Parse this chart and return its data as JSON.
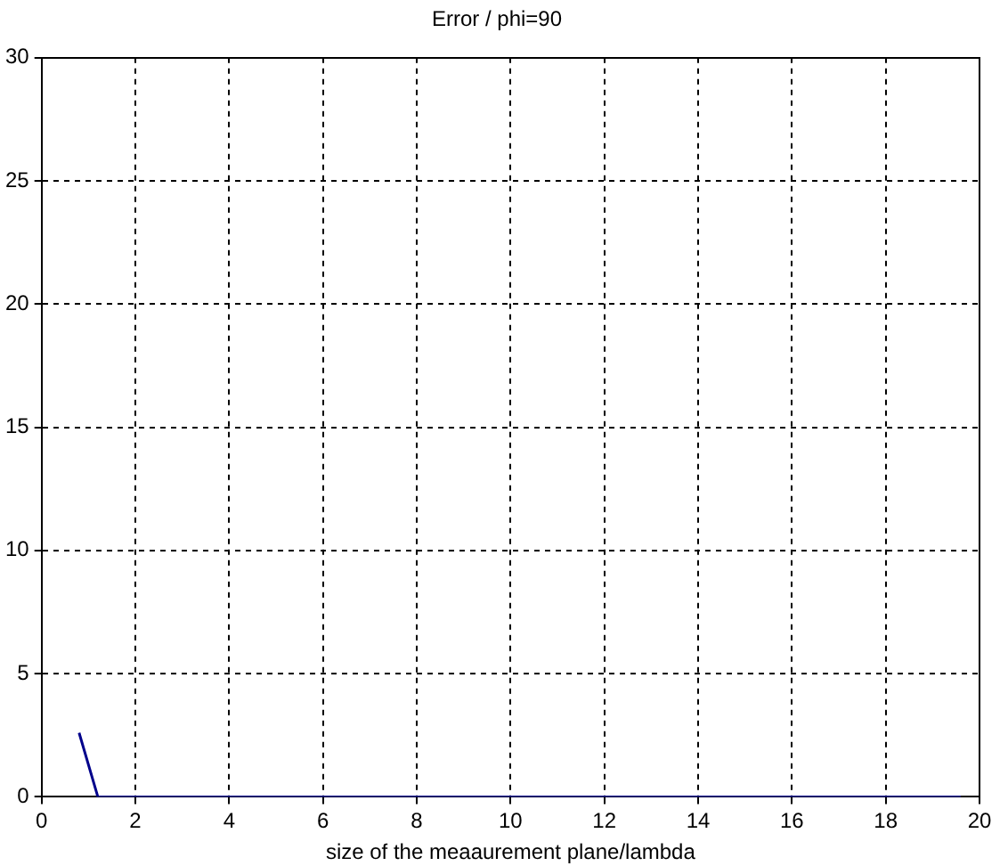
{
  "chart_data": {
    "type": "line",
    "title": "Error / phi=90",
    "xlabel": "size of the meaaurement plane/lambda",
    "x": [
      0.8,
      1.2,
      19.6
    ],
    "series": [
      {
        "color": "#00008b",
        "values": [
          2.6,
          0,
          0
        ]
      }
    ],
    "xlim": [
      0,
      20
    ],
    "xticks": [
      0,
      2,
      4,
      6,
      8,
      10,
      12,
      14,
      16,
      18,
      20
    ],
    "ylim": [
      0,
      30
    ],
    "yticks": [
      0,
      5,
      10,
      15,
      20,
      25,
      30
    ],
    "grid": true,
    "legend": false,
    "marker": "none",
    "line_style": "solid"
  }
}
